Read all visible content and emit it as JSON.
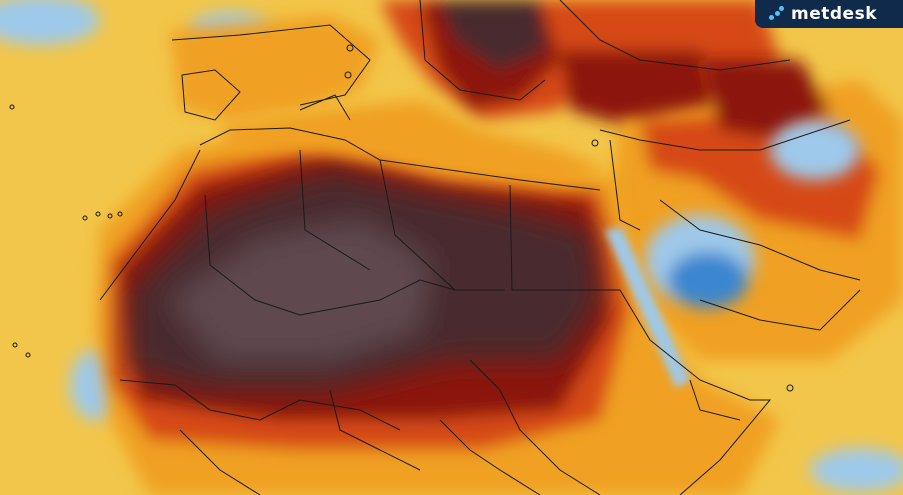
{
  "brand": {
    "logo_text": "metdesk",
    "logo_icon": "metdesk-logo-icon",
    "logo_bg": "#0f2a4a",
    "logo_accent": "#4fc3f7"
  },
  "palette": {
    "ocean": "#f2c64a",
    "land_warm": "#f0a020",
    "hot": "#d64a12",
    "very_hot": "#8c1408",
    "extreme": "#4a2a2e",
    "extreme_core": "#5e4a50",
    "cool": "#9ec9ea",
    "cold": "#3a86cf",
    "border": "#1a1a1a"
  }
}
